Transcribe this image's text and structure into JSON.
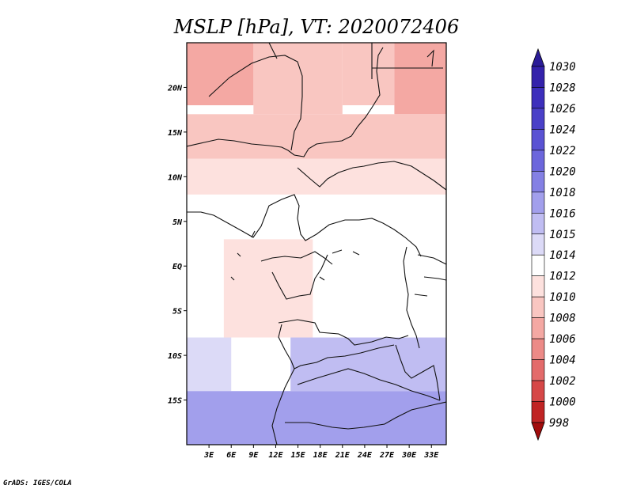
{
  "chart_data": {
    "type": "heatmap",
    "title": "MSLP [hPa], VT: 2020072406",
    "variable": "MSLP",
    "units": "hPa",
    "valid_time": "2020072406",
    "x_ticks": [
      "3E",
      "6E",
      "9E",
      "12E",
      "15E",
      "18E",
      "21E",
      "24E",
      "27E",
      "30E",
      "33E"
    ],
    "x_tick_values": [
      3,
      6,
      9,
      12,
      15,
      18,
      21,
      24,
      27,
      30,
      33
    ],
    "y_ticks": [
      "20N",
      "15N",
      "10N",
      "5N",
      "EQ",
      "5S",
      "10S",
      "15S"
    ],
    "y_tick_values": [
      20,
      15,
      10,
      5,
      0,
      -5,
      -10,
      -15
    ],
    "xlim": [
      0,
      35
    ],
    "ylim": [
      -20,
      25
    ],
    "colorbar_labels": [
      "1030",
      "1028",
      "1026",
      "1024",
      "1022",
      "1020",
      "1018",
      "1016",
      "1015",
      "1014",
      "1012",
      "1010",
      "1008",
      "1006",
      "1004",
      "1002",
      "1000",
      "998"
    ],
    "colorbar_colors": [
      "#2b1c98",
      "#3422ab",
      "#3d2fbc",
      "#4a40c8",
      "#5a52d3",
      "#6c66dc",
      "#8480e4",
      "#a29fec",
      "#c0bdf2",
      "#dcdaf7",
      "#ffffff",
      "#fde1de",
      "#f9c6c1",
      "#f4a8a3",
      "#ec8a87",
      "#e36b6b",
      "#d64747",
      "#c02424",
      "#a10c0c"
    ],
    "fields": [
      {
        "lon": [
          0,
          9
        ],
        "lat": [
          18,
          25
        ],
        "value": 1006
      },
      {
        "lon": [
          9,
          21
        ],
        "lat": [
          17,
          25
        ],
        "value": 1008
      },
      {
        "lon": [
          21,
          28
        ],
        "lat": [
          18,
          25
        ],
        "value": 1008
      },
      {
        "lon": [
          28,
          35
        ],
        "lat": [
          17,
          25
        ],
        "value": 1006
      },
      {
        "lon": [
          0,
          35
        ],
        "lat": [
          12,
          17
        ],
        "value": 1008
      },
      {
        "lon": [
          0,
          35
        ],
        "lat": [
          8,
          12
        ],
        "value": 1010
      },
      {
        "lon": [
          0,
          35
        ],
        "lat": [
          3,
          8
        ],
        "value": 1012
      },
      {
        "lon": [
          0,
          35
        ],
        "lat": [
          -8,
          3
        ],
        "value": 1012
      },
      {
        "lon": [
          5,
          17
        ],
        "lat": [
          -8,
          3
        ],
        "value": 1010
      },
      {
        "lon": [
          0,
          6
        ],
        "lat": [
          -14,
          -8
        ],
        "value": 1014
      },
      {
        "lon": [
          14,
          35
        ],
        "lat": [
          -14,
          -8
        ],
        "value": 1015
      },
      {
        "lon": [
          0,
          35
        ],
        "lat": [
          -20,
          -14
        ],
        "value": 1016
      }
    ]
  },
  "credit": "GrADS: IGES/COLA"
}
